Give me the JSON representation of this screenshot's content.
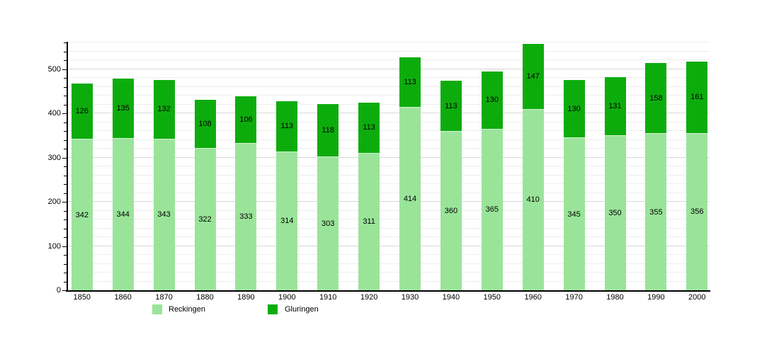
{
  "chart_data": {
    "type": "bar",
    "stacked": true,
    "title": "",
    "categories": [
      "1850",
      "1860",
      "1870",
      "1880",
      "1890",
      "1900",
      "1910",
      "1920",
      "1930",
      "1940",
      "1950",
      "1960",
      "1970",
      "1980",
      "1990",
      "2000"
    ],
    "series": [
      {
        "name": "Reckingen",
        "color": "#9AE49A",
        "values": [
          342,
          344,
          343,
          322,
          333,
          314,
          303,
          311,
          414,
          360,
          365,
          410,
          345,
          350,
          355,
          356
        ]
      },
      {
        "name": "Gluringen",
        "color": "#0DAC0D",
        "values": [
          126,
          135,
          132,
          108,
          106,
          113,
          118,
          113,
          113,
          113,
          130,
          147,
          130,
          131,
          158,
          161
        ]
      }
    ],
    "totals": [
      468,
      479,
      475,
      430,
      439,
      427,
      421,
      424,
      527,
      473,
      495,
      557,
      475,
      481,
      513,
      517
    ],
    "ylim": [
      0,
      560
    ],
    "yticks": [
      0,
      100,
      200,
      300,
      400,
      500
    ],
    "minor_tick_interval": 20,
    "grid": true,
    "legend_position": "bottom",
    "bar_value_labels": true,
    "xlabel": "",
    "ylabel": ""
  },
  "colors": {
    "background": "#ffffff",
    "axis": "#000000",
    "gridline_major": "#d8d8d8",
    "gridline_minor": "#eeeeee",
    "label_text": "#000000"
  }
}
